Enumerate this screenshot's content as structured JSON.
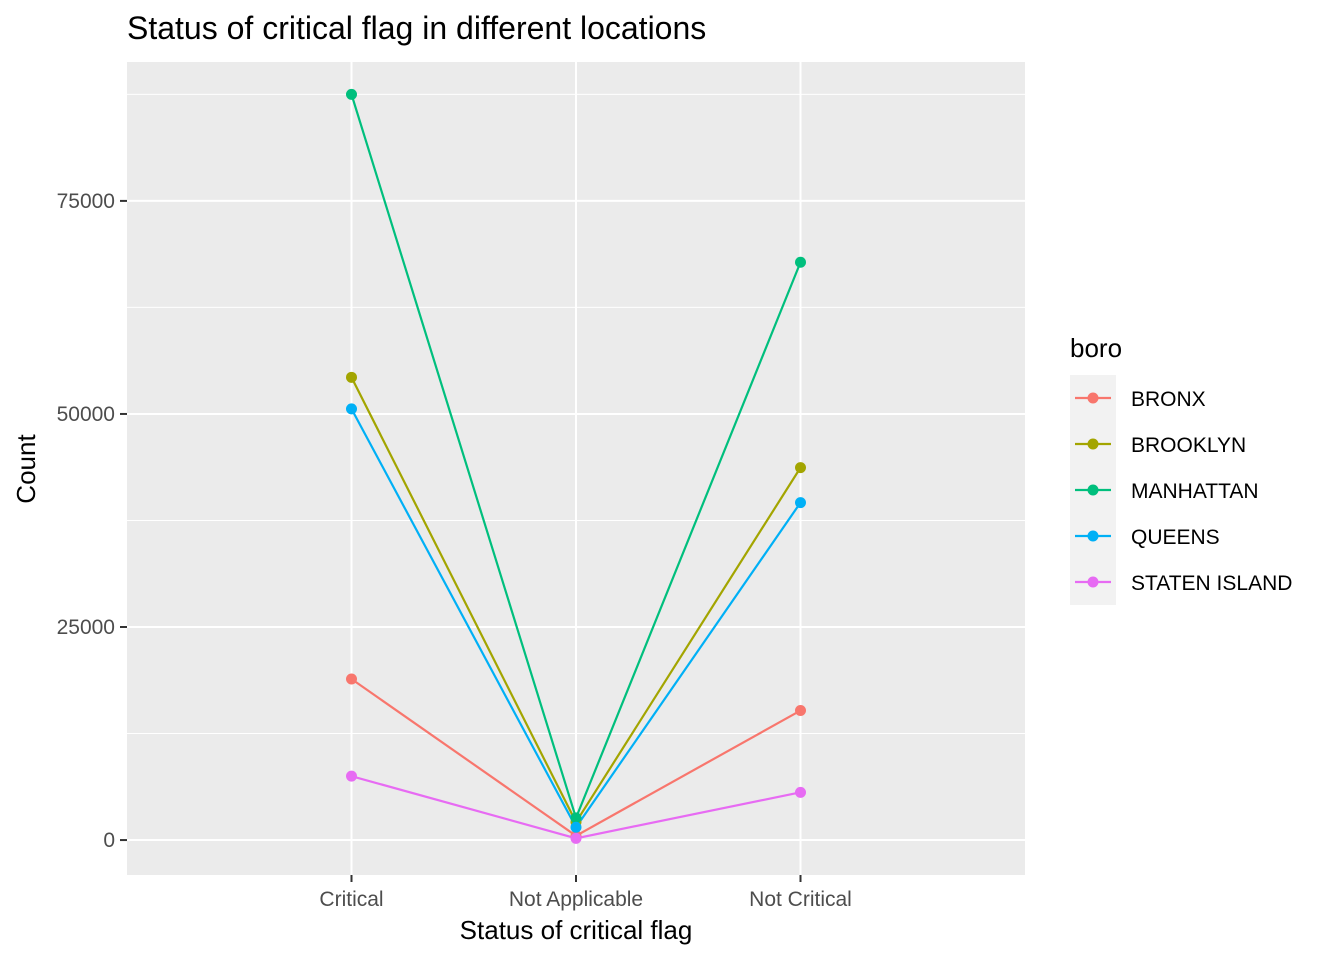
{
  "chart_data": {
    "type": "line",
    "title": "Status of critical flag in different locations",
    "xlabel": "Status of critical flag",
    "ylabel": "Count",
    "categories": [
      "Critical",
      "Not Applicable",
      "Not Critical"
    ],
    "yticks": [
      0,
      25000,
      50000,
      75000
    ],
    "ytick_labels": [
      "0",
      "25000",
      "50000",
      "75000"
    ],
    "ylim": [
      -4100,
      91300
    ],
    "grid": true,
    "legend_position": "right",
    "legend_title": "boro",
    "series": [
      {
        "name": "BRONX",
        "color": "#F8766D",
        "values": [
          18900,
          500,
          15200
        ]
      },
      {
        "name": "BROOKLYN",
        "color": "#A3A500",
        "values": [
          54300,
          2100,
          43700
        ]
      },
      {
        "name": "MANHATTAN",
        "color": "#00BF7D",
        "values": [
          87500,
          2600,
          67800
        ]
      },
      {
        "name": "QUEENS",
        "color": "#00B0F6",
        "values": [
          50600,
          1500,
          39600
        ]
      },
      {
        "name": "STATEN ISLAND",
        "color": "#E76BF3",
        "values": [
          7500,
          200,
          5600
        ]
      }
    ]
  }
}
